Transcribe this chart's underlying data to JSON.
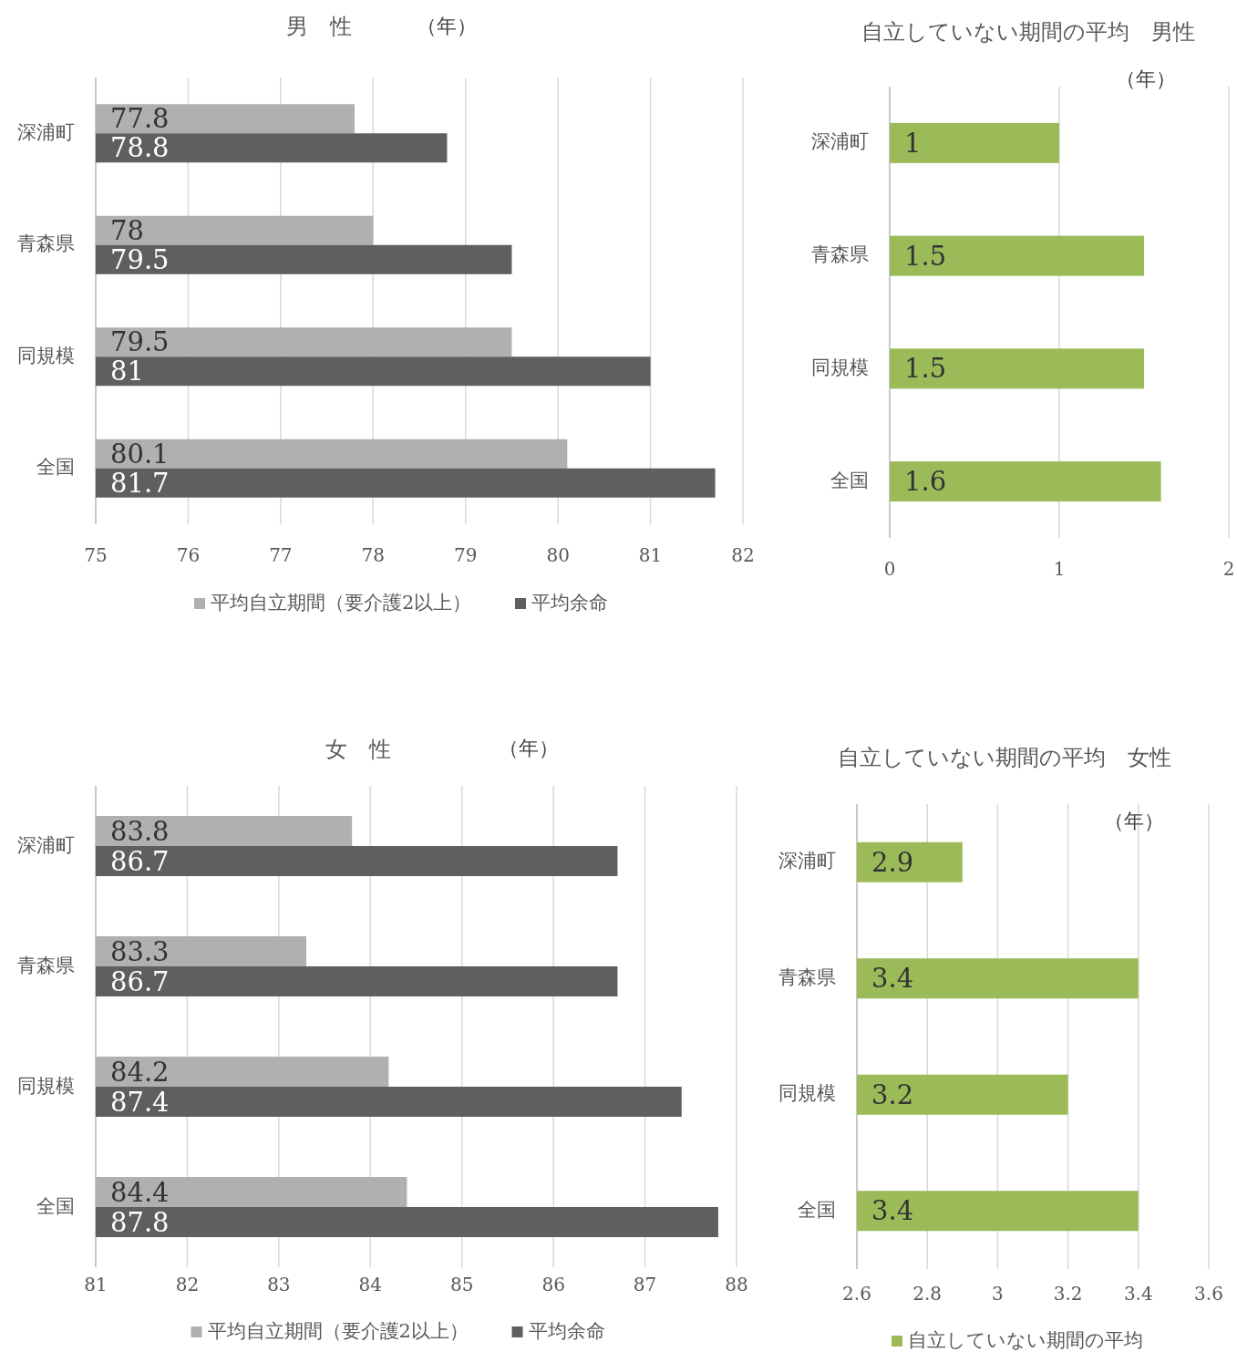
{
  "chart_data": [
    {
      "type": "bar",
      "orientation": "horizontal",
      "title": "男　性",
      "annotations": [
        "（年）"
      ],
      "categories": [
        "深浦町",
        "青森県",
        "同規模",
        "全国"
      ],
      "xlim": [
        75,
        82
      ],
      "xticks": [
        75,
        76,
        77,
        78,
        79,
        80,
        81,
        82
      ],
      "grid": "x",
      "legend": "bottom",
      "data_labels": true,
      "series": [
        {
          "name": "平均自立期間（要介護2以上）",
          "color": "#b0b0b0",
          "values": [
            77.8,
            78,
            79.5,
            80.1
          ]
        },
        {
          "name": "平均余命",
          "color": "#5f5f5f",
          "values": [
            78.8,
            79.5,
            81,
            81.7
          ]
        }
      ]
    },
    {
      "type": "bar",
      "orientation": "horizontal",
      "title": "自立していない期間の平均　男性",
      "annotations": [
        "（年）"
      ],
      "categories": [
        "深浦町",
        "青森県",
        "同規模",
        "全国"
      ],
      "xlim": [
        0,
        2
      ],
      "xticks": [
        0,
        1,
        2
      ],
      "grid": "x",
      "data_labels": true,
      "series": [
        {
          "color": "#9bbb59",
          "values": [
            1,
            1.5,
            1.5,
            1.6
          ]
        }
      ]
    },
    {
      "type": "bar",
      "orientation": "horizontal",
      "title": "女　性",
      "annotations": [
        "（年）"
      ],
      "categories": [
        "深浦町",
        "青森県",
        "同規模",
        "全国"
      ],
      "xlim": [
        81,
        88
      ],
      "xticks": [
        81,
        82,
        83,
        84,
        85,
        86,
        87,
        88
      ],
      "grid": "x",
      "legend": "bottom",
      "data_labels": true,
      "series": [
        {
          "name": "平均自立期間（要介護2以上）",
          "color": "#b0b0b0",
          "values": [
            83.8,
            83.3,
            84.2,
            84.4
          ]
        },
        {
          "name": "平均余命",
          "color": "#5f5f5f",
          "values": [
            86.7,
            86.7,
            87.4,
            87.8
          ]
        }
      ]
    },
    {
      "type": "bar",
      "orientation": "horizontal",
      "title": "自立していない期間の平均　女性",
      "annotations": [
        "（年）"
      ],
      "categories": [
        "深浦町",
        "青森県",
        "同規模",
        "全国"
      ],
      "xlim": [
        2.6,
        3.6
      ],
      "xticks": [
        2.6,
        2.8,
        3,
        3.2,
        3.4,
        3.6
      ],
      "grid": "x",
      "legend": "bottom",
      "data_labels": true,
      "series": [
        {
          "name": "自立していない期間の平均",
          "color": "#9bbb59",
          "values": [
            2.9,
            3.4,
            3.2,
            3.4
          ]
        }
      ]
    }
  ]
}
